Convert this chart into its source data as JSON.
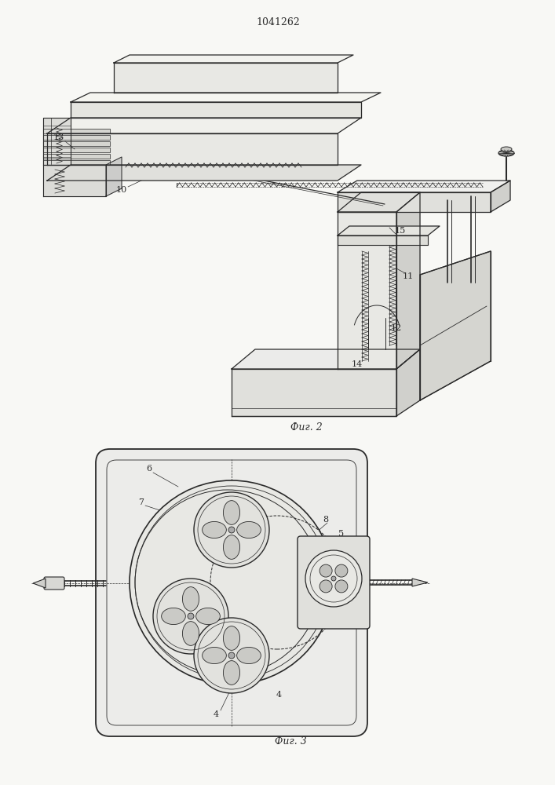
{
  "title": "1041262",
  "bg_color": "#f8f8f5",
  "line_color": "#2a2a2a",
  "fig2_caption": "Фиг. 2",
  "fig3_caption": "Фиг. 3",
  "fig_width": 7.07,
  "fig_height": 10.0,
  "dpi": 100
}
